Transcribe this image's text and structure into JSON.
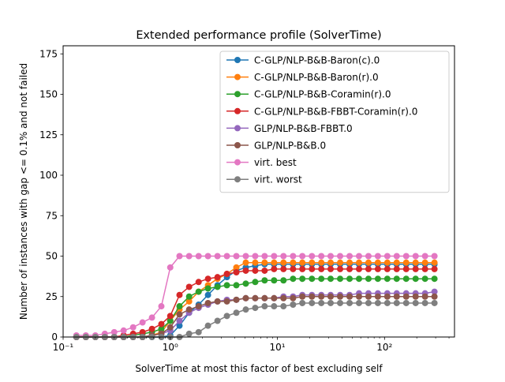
{
  "chart_data": {
    "type": "line",
    "title": "Extended performance profile (SolverTime)",
    "xlabel": "SolverTime at most this factor of best excluding self",
    "ylabel": "Number of instances with gap <= 0.1% and not failed",
    "xscale": "log",
    "xlim": [
      0.1,
      450
    ],
    "ylim": [
      0,
      180
    ],
    "x_ticks": [
      {
        "value": 0.1,
        "label": "10⁻¹"
      },
      {
        "value": 1,
        "label": "10⁰"
      },
      {
        "value": 10,
        "label": "10¹"
      },
      {
        "value": 100,
        "label": "10²"
      }
    ],
    "y_ticks": [
      {
        "value": 0,
        "label": "0"
      },
      {
        "value": 25,
        "label": "25"
      },
      {
        "value": 50,
        "label": "50"
      },
      {
        "value": 75,
        "label": "75"
      },
      {
        "value": 100,
        "label": "100"
      },
      {
        "value": 125,
        "label": "125"
      },
      {
        "value": 150,
        "label": "150"
      },
      {
        "value": 175,
        "label": "175"
      }
    ],
    "grid": false,
    "legend_position": "top-right",
    "x": [
      0.133,
      0.163,
      0.2,
      0.245,
      0.3,
      0.367,
      0.45,
      0.551,
      0.675,
      0.826,
      1.0,
      1.22,
      1.5,
      1.84,
      2.25,
      2.76,
      3.38,
      4.14,
      5.07,
      6.21,
      7.6,
      9.31,
      11.4,
      14.0,
      17.1,
      21.0,
      25.7,
      31.4,
      38.5,
      47.2,
      57.8,
      70.8,
      86.7,
      106.2,
      130.0,
      159.3,
      195.1,
      238.9,
      292.6
    ],
    "series": [
      {
        "name": "C-GLP/NLP-B&B-Baron(c).0",
        "color": "#1f77b4",
        "values": [
          0,
          0,
          0,
          0,
          0,
          0,
          0,
          0,
          0,
          0,
          1,
          7,
          15,
          20,
          26,
          32,
          37,
          41,
          43,
          44,
          45,
          45,
          45,
          45,
          45,
          45,
          45,
          45,
          45,
          45,
          45,
          45,
          45,
          45,
          45,
          45,
          45,
          45,
          45
        ]
      },
      {
        "name": "C-GLP/NLP-B&B-Baron(r).0",
        "color": "#ff7f0e",
        "values": [
          0,
          0,
          0,
          0,
          0,
          0,
          0,
          0,
          1,
          3,
          10,
          17,
          22,
          28,
          32,
          36,
          39,
          43,
          46,
          46,
          46,
          46,
          46,
          46,
          46,
          46,
          46,
          46,
          46,
          46,
          46,
          46,
          46,
          46,
          46,
          46,
          46,
          46,
          46
        ]
      },
      {
        "name": "C-GLP/NLP-B&B-Coramin(r).0",
        "color": "#2ca02c",
        "values": [
          0,
          0,
          0,
          0,
          0,
          0,
          1,
          2,
          3,
          5,
          10,
          19,
          25,
          28,
          30,
          31,
          32,
          32,
          33,
          34,
          35,
          35,
          35,
          36,
          36,
          36,
          36,
          36,
          36,
          36,
          36,
          36,
          36,
          36,
          36,
          36,
          36,
          36,
          36
        ]
      },
      {
        "name": "C-GLP/NLP-B&B-FBBT-Coramin(r).0",
        "color": "#d62728",
        "values": [
          0,
          0,
          0,
          0,
          0,
          1,
          2,
          3,
          5,
          8,
          13,
          26,
          31,
          34,
          36,
          37,
          39,
          40,
          41,
          41,
          41,
          42,
          42,
          42,
          42,
          42,
          42,
          42,
          42,
          42,
          42,
          42,
          42,
          42,
          42,
          42,
          42,
          42,
          42
        ]
      },
      {
        "name": "GLP/NLP-B&B-FBBT.0",
        "color": "#9467bd",
        "values": [
          0,
          0,
          0,
          0,
          0,
          0,
          0,
          0,
          1,
          2,
          4,
          10,
          15,
          18,
          20,
          22,
          23,
          23,
          24,
          24,
          24,
          24,
          25,
          25,
          26,
          26,
          26,
          26,
          26,
          26,
          27,
          27,
          27,
          27,
          27,
          27,
          27,
          27,
          28
        ]
      },
      {
        "name": "GLP/NLP-B&B.0",
        "color": "#8c564b",
        "values": [
          0,
          0,
          0,
          0,
          0,
          0,
          0,
          0,
          1,
          2,
          6,
          14,
          17,
          19,
          21,
          22,
          22,
          23,
          24,
          24,
          24,
          24,
          24,
          24,
          25,
          25,
          25,
          25,
          25,
          25,
          25,
          25,
          25,
          25,
          25,
          25,
          25,
          25,
          25
        ]
      },
      {
        "name": "virt. best",
        "color": "#e377c2",
        "values": [
          1,
          1,
          1,
          2,
          3,
          4,
          6,
          9,
          12,
          19,
          43,
          50,
          50,
          50,
          50,
          50,
          50,
          50,
          50,
          50,
          50,
          50,
          50,
          50,
          50,
          50,
          50,
          50,
          50,
          50,
          50,
          50,
          50,
          50,
          50,
          50,
          50,
          50,
          50
        ]
      },
      {
        "name": "virt. worst",
        "color": "#7f7f7f",
        "values": [
          0,
          0,
          0,
          0,
          0,
          0,
          0,
          0,
          0,
          0,
          0,
          0,
          2,
          3,
          7,
          10,
          13,
          15,
          17,
          18,
          19,
          19,
          19,
          20,
          21,
          21,
          21,
          21,
          21,
          21,
          21,
          21,
          21,
          21,
          21,
          21,
          21,
          21,
          21
        ]
      }
    ]
  }
}
